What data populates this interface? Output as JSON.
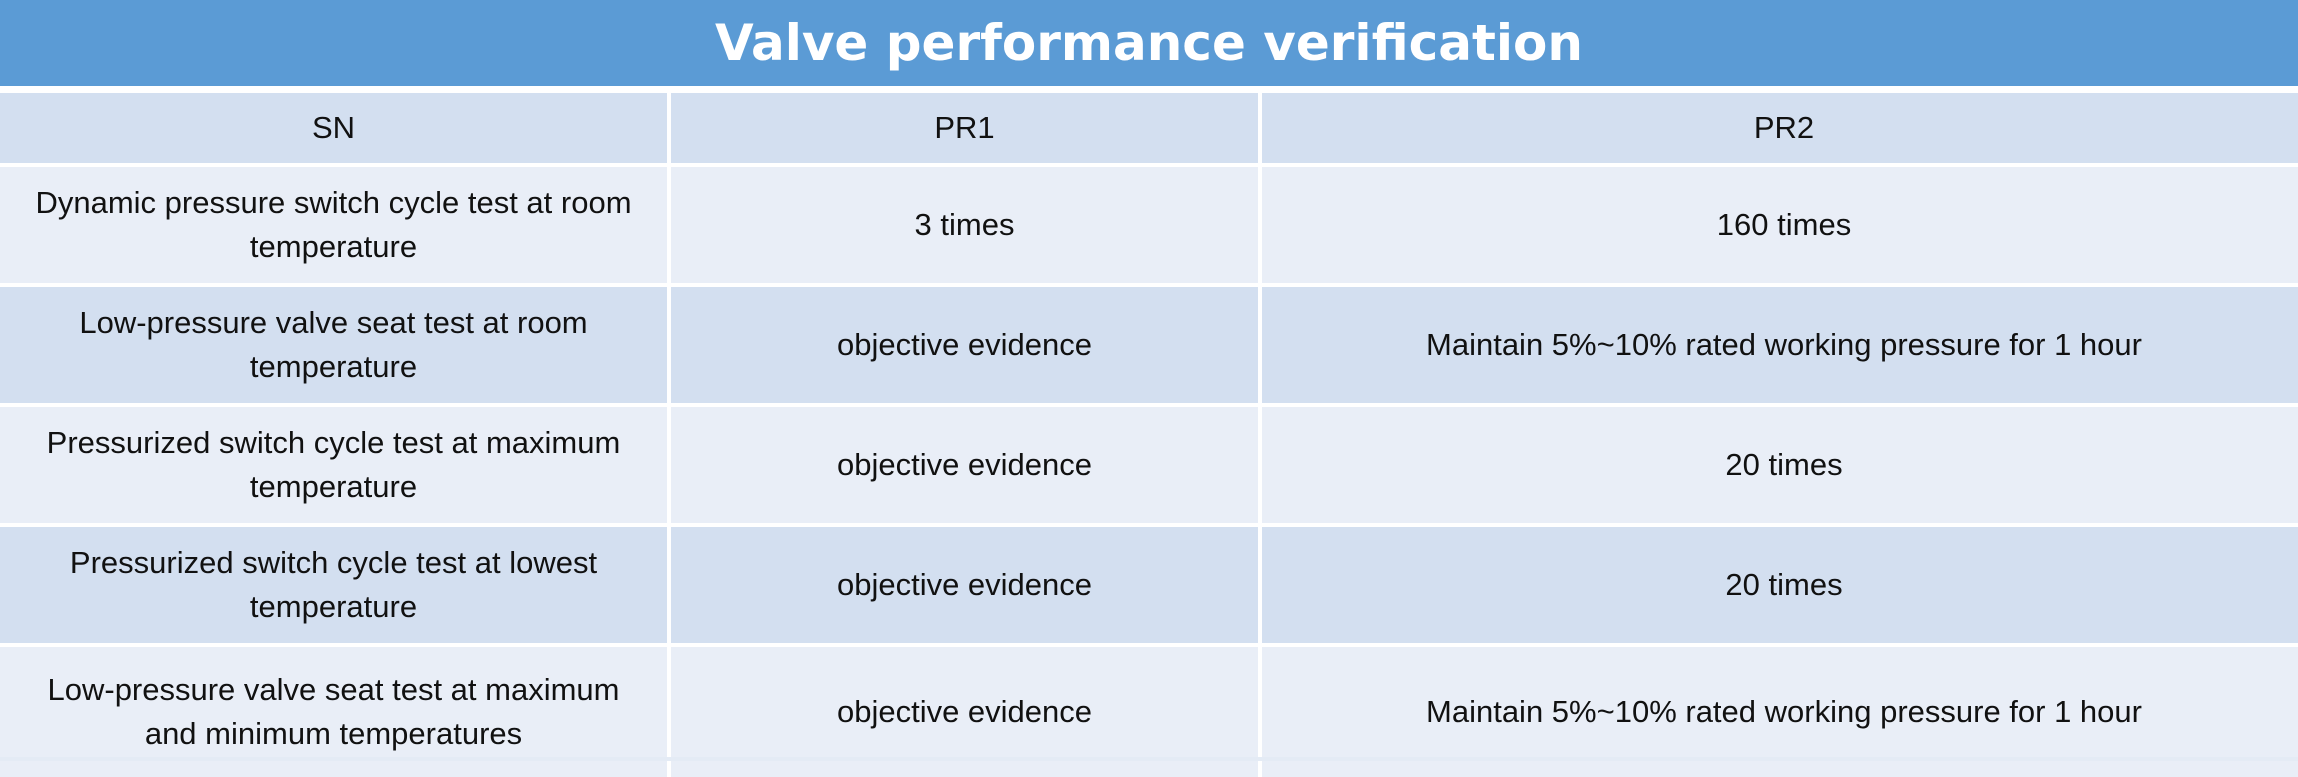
{
  "title": "Valve performance verification",
  "table": {
    "headers": [
      "SN",
      "PR1",
      "PR2"
    ],
    "rows": [
      [
        "Dynamic pressure switch cycle test at room temperature",
        "3 times",
        "160 times"
      ],
      [
        "Low-pressure valve seat test at room temperature",
        "objective evidence",
        "Maintain 5%~10% rated working pressure for 1 hour"
      ],
      [
        "Pressurized switch cycle test at maximum temperature",
        "objective evidence",
        "20 times"
      ],
      [
        "Pressurized switch cycle test at lowest temperature",
        "objective evidence",
        "20 times"
      ],
      [
        "Low-pressure valve seat test at maximum and minimum temperatures",
        "objective evidence",
        "Maintain 5%~10% rated working pressure for 1 hour"
      ]
    ]
  },
  "colors": {
    "title_bar": "#5b9bd5",
    "header_row": "#d3dff0",
    "light_row": "#e9eef7",
    "dark_row": "#d3dff0"
  }
}
